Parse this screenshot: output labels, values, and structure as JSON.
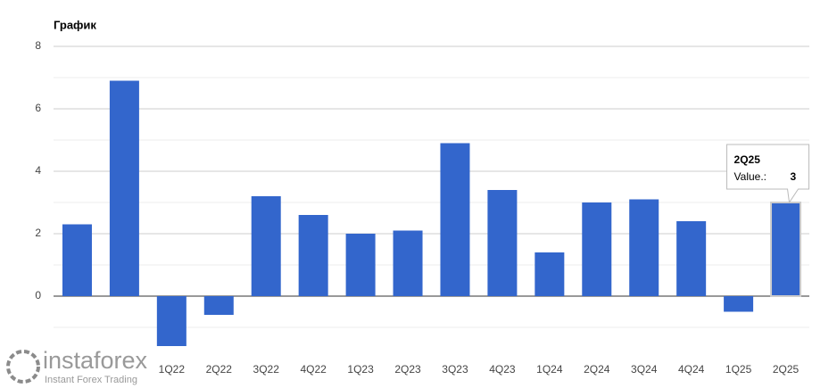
{
  "chart_data": {
    "type": "bar",
    "title": "График",
    "categories": [
      null,
      null,
      "1Q22",
      "2Q22",
      "3Q22",
      "4Q22",
      "1Q23",
      "2Q23",
      "3Q23",
      "4Q23",
      "1Q24",
      "2Q24",
      "3Q24",
      "4Q24",
      "1Q25",
      "2Q25"
    ],
    "values": [
      2.3,
      6.9,
      -1.6,
      -0.6,
      3.2,
      2.6,
      2.0,
      2.1,
      4.9,
      3.4,
      1.4,
      3.0,
      3.1,
      2.4,
      -0.5,
      3.0
    ],
    "color": "#3366cc",
    "ylim": [
      -2,
      8
    ],
    "yticks": [
      0,
      2,
      4,
      6,
      8
    ],
    "minor_yticks": [
      -1,
      1,
      3,
      5,
      7
    ],
    "grid": true,
    "tooltip": {
      "index": 15,
      "label": "Value.:"
    }
  },
  "watermark": {
    "brand": "instaforex",
    "tagline": "Instant Forex Trading"
  }
}
